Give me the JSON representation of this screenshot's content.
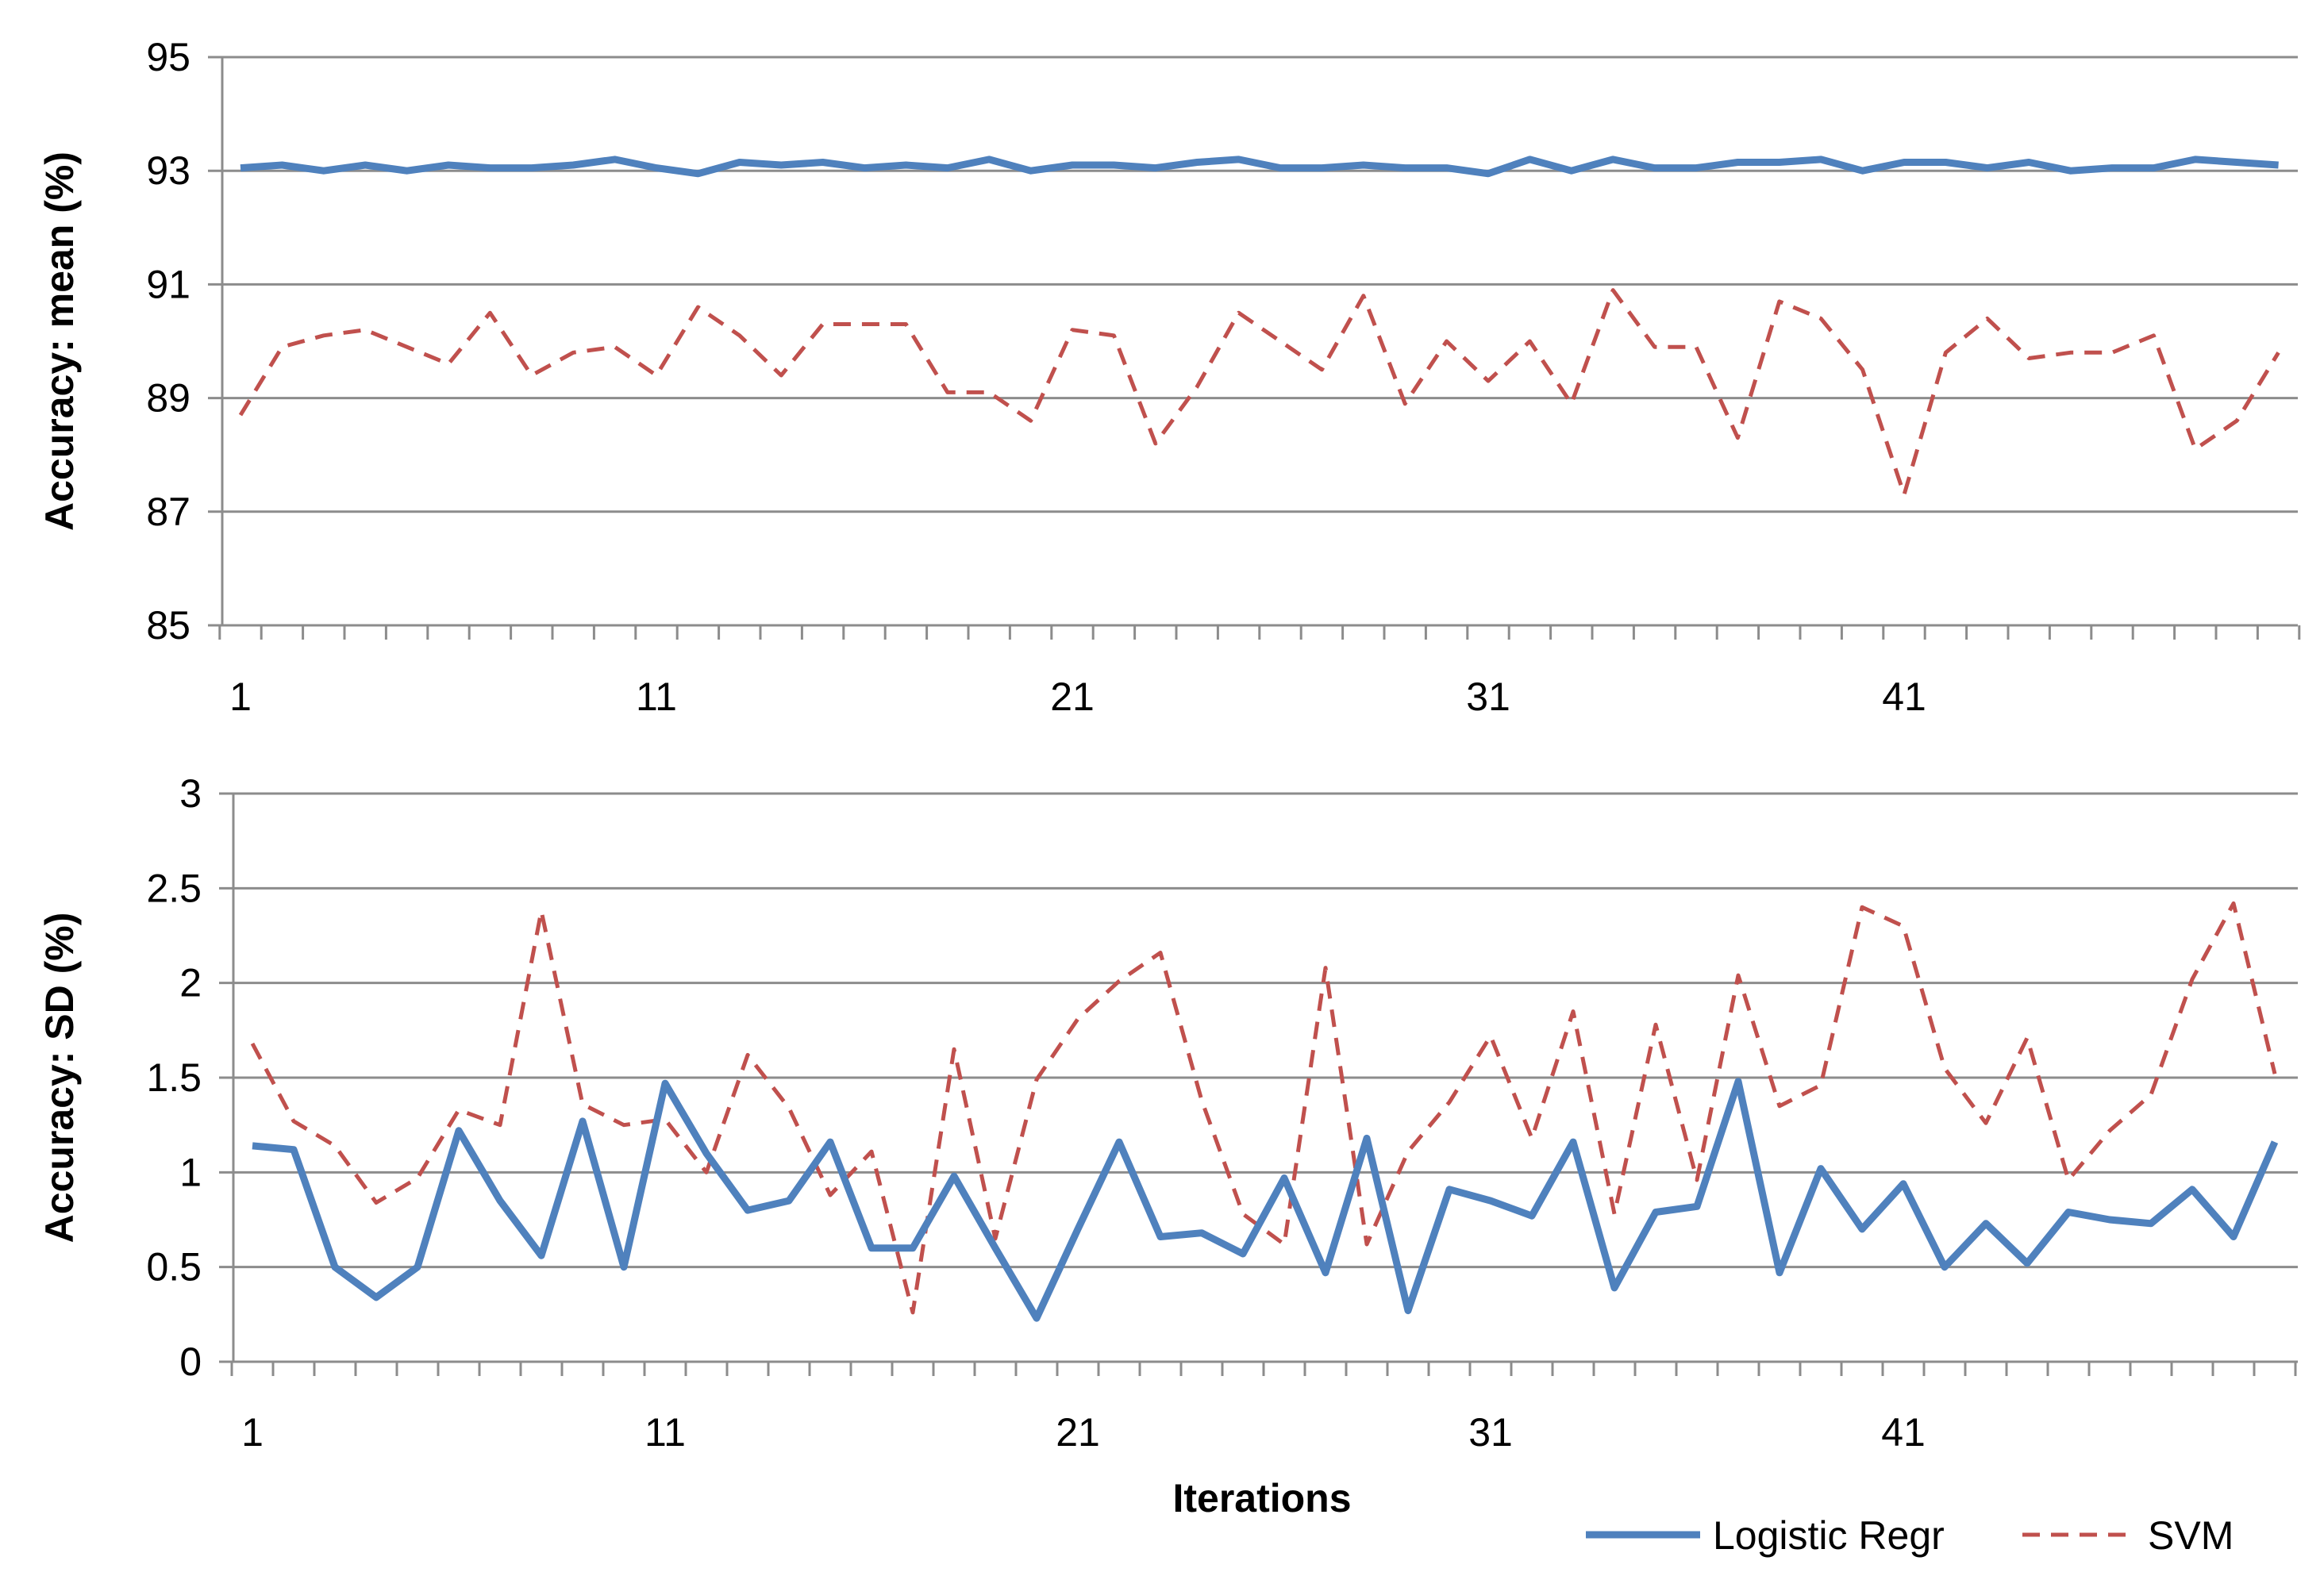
{
  "chart_data": [
    {
      "type": "line",
      "title": "",
      "xlabel": "",
      "ylabel": "Accuracy: mean (%)",
      "ylim": [
        85,
        95
      ],
      "yticks": [
        85,
        87,
        89,
        91,
        93,
        95
      ],
      "xtick_labels": [
        1,
        11,
        21,
        31,
        41
      ],
      "grid": true,
      "x": [
        1,
        2,
        3,
        4,
        5,
        6,
        7,
        8,
        9,
        10,
        11,
        12,
        13,
        14,
        15,
        16,
        17,
        18,
        19,
        20,
        21,
        22,
        23,
        24,
        25,
        26,
        27,
        28,
        29,
        30,
        31,
        32,
        33,
        34,
        35,
        36,
        37,
        38,
        39,
        40,
        41,
        42,
        43,
        44,
        45,
        46,
        47,
        48,
        49,
        50
      ],
      "series": [
        {
          "name": "Logistic Regr",
          "color": "#4f81bd",
          "style": "solid",
          "values": [
            93.05,
            93.1,
            93.0,
            93.1,
            93.0,
            93.1,
            93.05,
            93.05,
            93.1,
            93.2,
            93.05,
            92.95,
            93.15,
            93.1,
            93.15,
            93.05,
            93.1,
            93.05,
            93.2,
            93.0,
            93.1,
            93.1,
            93.05,
            93.15,
            93.2,
            93.05,
            93.05,
            93.1,
            93.05,
            93.05,
            92.95,
            93.2,
            93.0,
            93.2,
            93.05,
            93.05,
            93.15,
            93.15,
            93.2,
            93.0,
            93.15,
            93.15,
            93.05,
            93.15,
            93.0,
            93.05,
            93.05,
            93.2,
            93.15,
            93.1
          ]
        },
        {
          "name": "SVM",
          "color": "#c0504d",
          "style": "dashed",
          "values": [
            88.7,
            89.9,
            90.1,
            90.2,
            89.9,
            89.6,
            90.5,
            89.4,
            89.8,
            89.9,
            89.4,
            90.6,
            90.1,
            89.4,
            90.3,
            90.3,
            90.3,
            89.1,
            89.1,
            88.6,
            90.2,
            90.1,
            88.2,
            89.2,
            90.5,
            90.0,
            89.5,
            90.8,
            88.9,
            90.0,
            89.3,
            90.0,
            88.9,
            90.9,
            89.9,
            89.9,
            88.3,
            90.7,
            90.4,
            89.5,
            87.3,
            89.8,
            90.4,
            89.7,
            89.8,
            89.8,
            90.1,
            88.1,
            88.6,
            89.8
          ]
        }
      ]
    },
    {
      "type": "line",
      "title": "",
      "xlabel": "Iterations",
      "ylabel": "Accuracy: SD (%)",
      "ylim": [
        0,
        3
      ],
      "yticks": [
        0,
        0.5,
        1,
        1.5,
        2,
        2.5,
        3
      ],
      "ytick_labels": [
        "0",
        "0.5",
        "1",
        "1.5",
        "2",
        "2.5",
        "3"
      ],
      "xtick_labels": [
        1,
        11,
        21,
        31,
        41
      ],
      "grid": true,
      "x": [
        1,
        2,
        3,
        4,
        5,
        6,
        7,
        8,
        9,
        10,
        11,
        12,
        13,
        14,
        15,
        16,
        17,
        18,
        19,
        20,
        21,
        22,
        23,
        24,
        25,
        26,
        27,
        28,
        29,
        30,
        31,
        32,
        33,
        34,
        35,
        36,
        37,
        38,
        39,
        40,
        41,
        42,
        43,
        44,
        45,
        46,
        47,
        48,
        49,
        50
      ],
      "series": [
        {
          "name": "Logistic Regr",
          "color": "#4f81bd",
          "style": "solid",
          "values": [
            1.14,
            1.12,
            0.5,
            0.34,
            0.5,
            1.22,
            0.85,
            0.56,
            1.27,
            0.5,
            1.47,
            1.1,
            0.8,
            0.85,
            1.16,
            0.6,
            0.6,
            0.98,
            0.6,
            0.23,
            0.7,
            1.16,
            0.66,
            0.68,
            0.57,
            0.97,
            0.47,
            1.18,
            0.27,
            0.91,
            0.85,
            0.77,
            1.16,
            0.39,
            0.79,
            0.82,
            1.48,
            0.47,
            1.02,
            0.7,
            0.94,
            0.5,
            0.73,
            0.52,
            0.79,
            0.75,
            0.73,
            0.91,
            0.66,
            1.16
          ]
        },
        {
          "name": "SVM",
          "color": "#c0504d",
          "style": "dashed",
          "values": [
            1.68,
            1.27,
            1.14,
            0.84,
            0.97,
            1.33,
            1.25,
            2.38,
            1.36,
            1.25,
            1.28,
            1.0,
            1.62,
            1.34,
            0.88,
            1.11,
            0.26,
            1.65,
            0.65,
            1.49,
            1.81,
            2.01,
            2.16,
            1.38,
            0.78,
            0.62,
            2.08,
            0.62,
            1.11,
            1.37,
            1.72,
            1.18,
            1.85,
            0.78,
            1.78,
            0.96,
            2.04,
            1.35,
            1.46,
            2.4,
            2.3,
            1.55,
            1.26,
            1.71,
            0.96,
            1.22,
            1.41,
            2.02,
            2.42,
            1.52
          ]
        }
      ],
      "legend_position": "bottom-right"
    }
  ]
}
